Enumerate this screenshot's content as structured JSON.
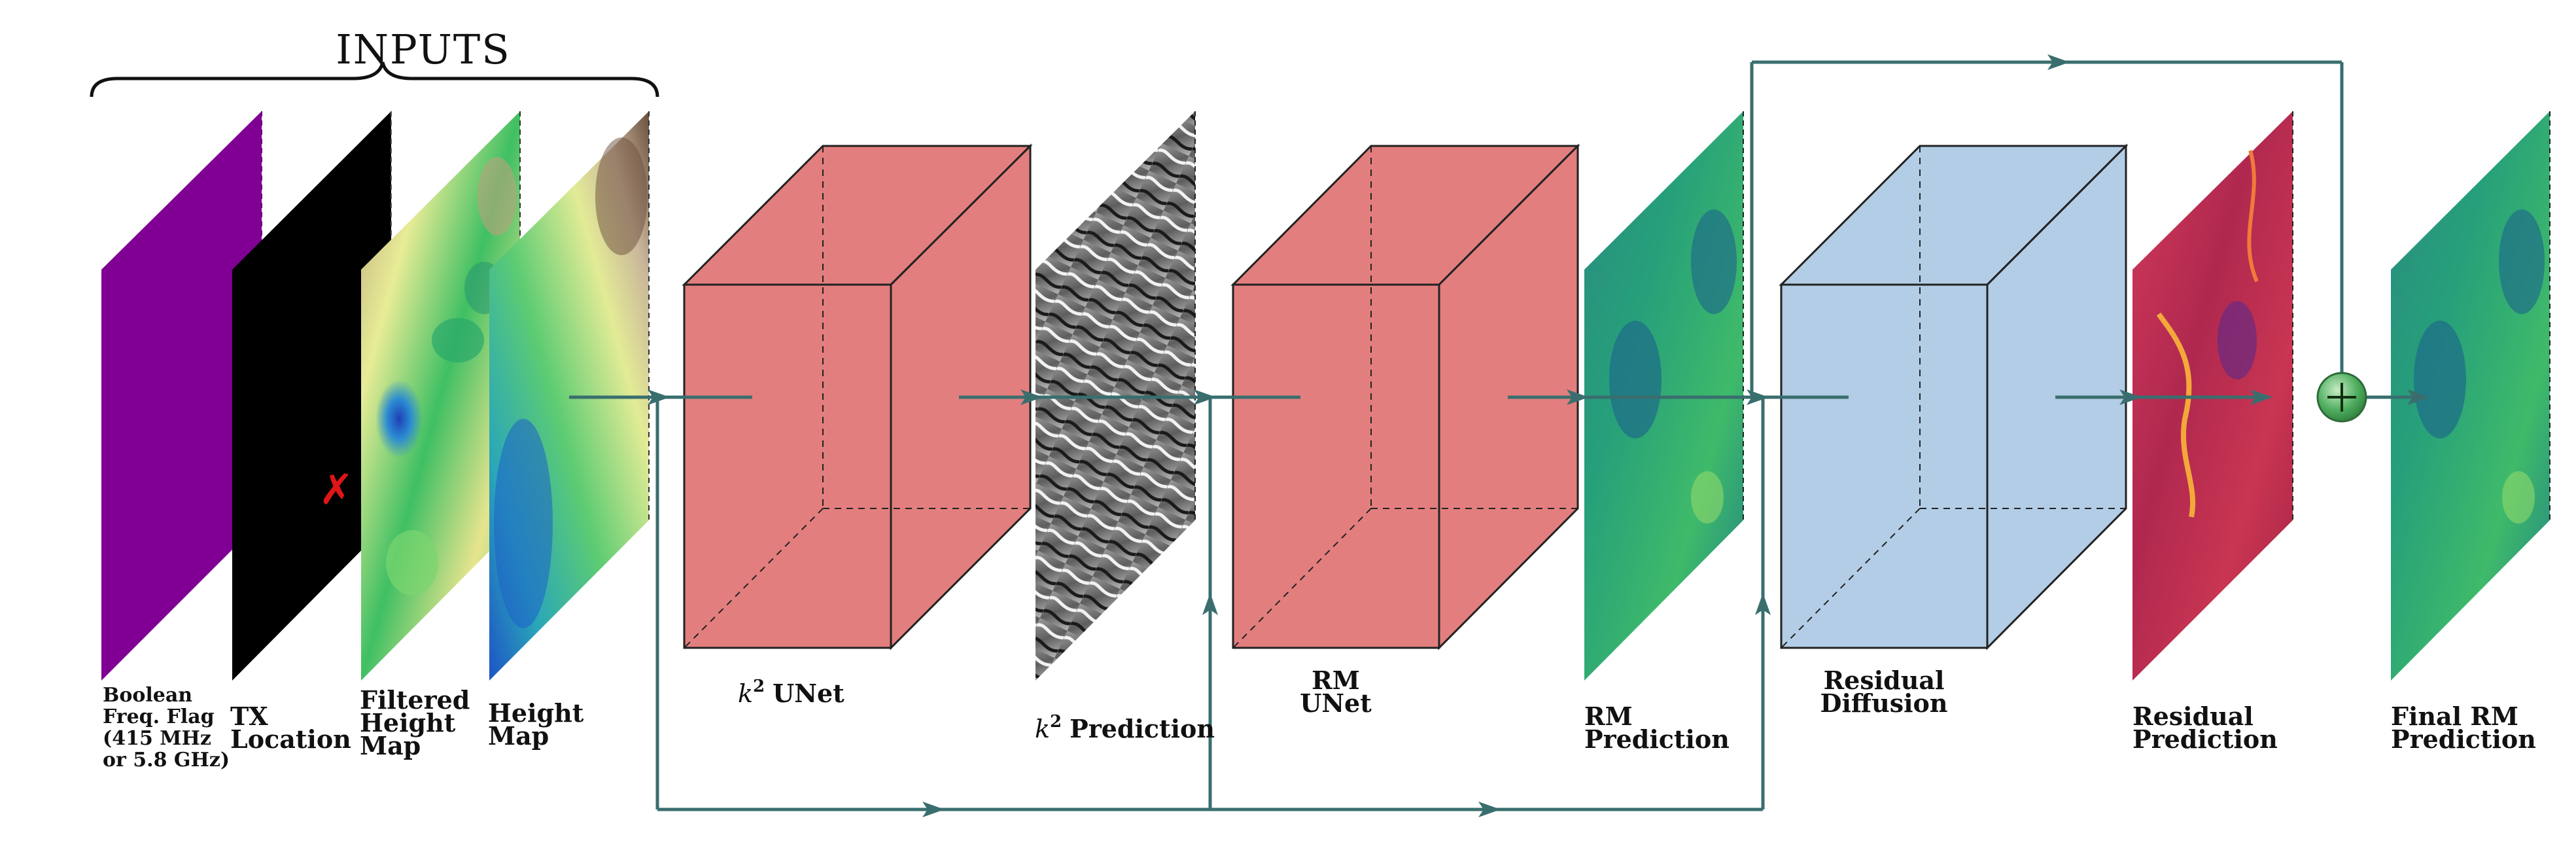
{
  "inputs_title": "INPUTS",
  "inputs": [
    {
      "line1": "Boolean",
      "line2": "Freq. Flag",
      "line3": "(415 MHz",
      "line4": "or 5.8 GHz)"
    },
    {
      "line1": "TX",
      "line2": "Location"
    },
    {
      "line1": "Filtered",
      "line2": "Height",
      "line3": "Map"
    },
    {
      "line1": "Height",
      "line2": "Map"
    }
  ],
  "tx_marker": "✗",
  "k2_unet": {
    "symbol": "k",
    "sup": "2",
    "text": "UNet"
  },
  "k2_prediction": {
    "symbol": "k",
    "sup": "2",
    "text": "Prediction"
  },
  "rm_unet": {
    "line1": "RM",
    "line2": "UNet"
  },
  "rm_prediction": {
    "line1": "RM",
    "line2": "Prediction"
  },
  "residual_diffusion": {
    "line1": "Residual",
    "line2": "Diffusion"
  },
  "residual_prediction": {
    "line1": "Residual",
    "line2": "Prediction"
  },
  "final_prediction": {
    "line1": "Final RM",
    "line2": "Prediction"
  },
  "sum_symbol": "+",
  "colors": {
    "arrow": "#3a6e6e",
    "unet_block": "#e37e7e",
    "diffusion_block": "#b3cde6",
    "freq_flag": "#800094",
    "tx_layer": "#000000",
    "sum_node": "#4fae5f"
  }
}
